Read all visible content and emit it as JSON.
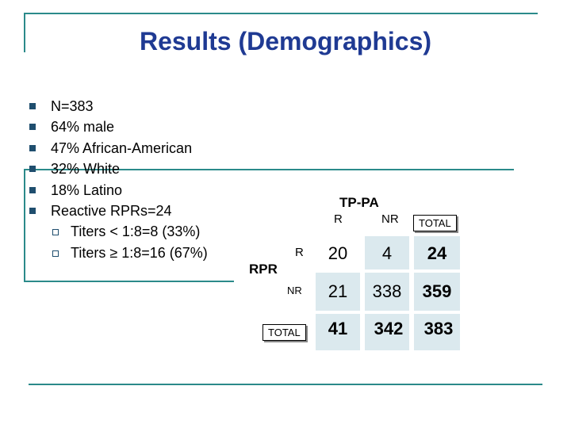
{
  "slide": {
    "title": "Results (Demographics)",
    "bullets": [
      "N=383",
      "64% male",
      "47% African-American",
      "32% White",
      "18% Latino",
      "Reactive RPRs=24"
    ],
    "sub_bullets": [
      "Titers < 1:8=8 (33%)",
      "Titers ≥ 1:8=16 (67%)"
    ]
  },
  "table": {
    "col_group": "TP-PA",
    "row_group": "RPR",
    "col_headers": [
      "R",
      "NR",
      "TOTAL"
    ],
    "row_headers": [
      "R",
      "NR",
      "TOTAL"
    ],
    "rows": [
      [
        "20",
        "4",
        "24"
      ],
      [
        "21",
        "338",
        "359"
      ],
      [
        "41",
        "342",
        "383"
      ]
    ]
  },
  "colors": {
    "title": "#1f3a93",
    "rules": "#2b8a8a",
    "bullet": "#1f4e6e",
    "cell_fill": "#dbe9ee"
  }
}
